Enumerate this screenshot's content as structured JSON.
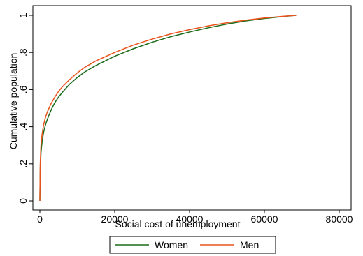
{
  "chart_data": {
    "type": "line",
    "xlabel": "Social cost of unemployment",
    "ylabel": "Cumulative population",
    "xlim": [
      0,
      80000
    ],
    "ylim": [
      0,
      1
    ],
    "x_ticks": [
      0,
      20000,
      40000,
      60000,
      80000
    ],
    "x_tick_labels": [
      "0",
      "20000",
      "40000",
      "60000",
      "80000"
    ],
    "y_ticks": [
      0,
      0.2,
      0.4,
      0.6,
      0.8,
      1
    ],
    "y_tick_labels": [
      "0",
      ".2",
      ".4",
      ".6",
      ".8",
      "1"
    ],
    "grid": false,
    "legend_position": "bottom",
    "series": [
      {
        "name": "Women",
        "color": "#1a6b1a",
        "points": [
          [
            0,
            0
          ],
          [
            100,
            0.17
          ],
          [
            300,
            0.26
          ],
          [
            600,
            0.32
          ],
          [
            1000,
            0.37
          ],
          [
            1500,
            0.41
          ],
          [
            2000,
            0.44
          ],
          [
            3000,
            0.49
          ],
          [
            4000,
            0.53
          ],
          [
            5000,
            0.56
          ],
          [
            6000,
            0.585
          ],
          [
            8000,
            0.63
          ],
          [
            10000,
            0.665
          ],
          [
            12000,
            0.695
          ],
          [
            15000,
            0.73
          ],
          [
            20000,
            0.78
          ],
          [
            25000,
            0.82
          ],
          [
            30000,
            0.855
          ],
          [
            35000,
            0.885
          ],
          [
            40000,
            0.91
          ],
          [
            45000,
            0.933
          ],
          [
            50000,
            0.953
          ],
          [
            55000,
            0.97
          ],
          [
            60000,
            0.983
          ],
          [
            65000,
            0.994
          ],
          [
            68500,
            1.0
          ]
        ]
      },
      {
        "name": "Men",
        "color": "#e8531c",
        "points": [
          [
            0,
            0
          ],
          [
            100,
            0.2
          ],
          [
            300,
            0.3
          ],
          [
            600,
            0.36
          ],
          [
            1000,
            0.41
          ],
          [
            1500,
            0.45
          ],
          [
            2000,
            0.48
          ],
          [
            3000,
            0.525
          ],
          [
            4000,
            0.56
          ],
          [
            5000,
            0.59
          ],
          [
            6000,
            0.615
          ],
          [
            8000,
            0.655
          ],
          [
            10000,
            0.69
          ],
          [
            12000,
            0.72
          ],
          [
            15000,
            0.755
          ],
          [
            20000,
            0.8
          ],
          [
            25000,
            0.84
          ],
          [
            30000,
            0.872
          ],
          [
            35000,
            0.9
          ],
          [
            40000,
            0.923
          ],
          [
            45000,
            0.943
          ],
          [
            50000,
            0.96
          ],
          [
            55000,
            0.974
          ],
          [
            60000,
            0.986
          ],
          [
            65000,
            0.995
          ],
          [
            68500,
            1.0
          ]
        ]
      }
    ]
  }
}
